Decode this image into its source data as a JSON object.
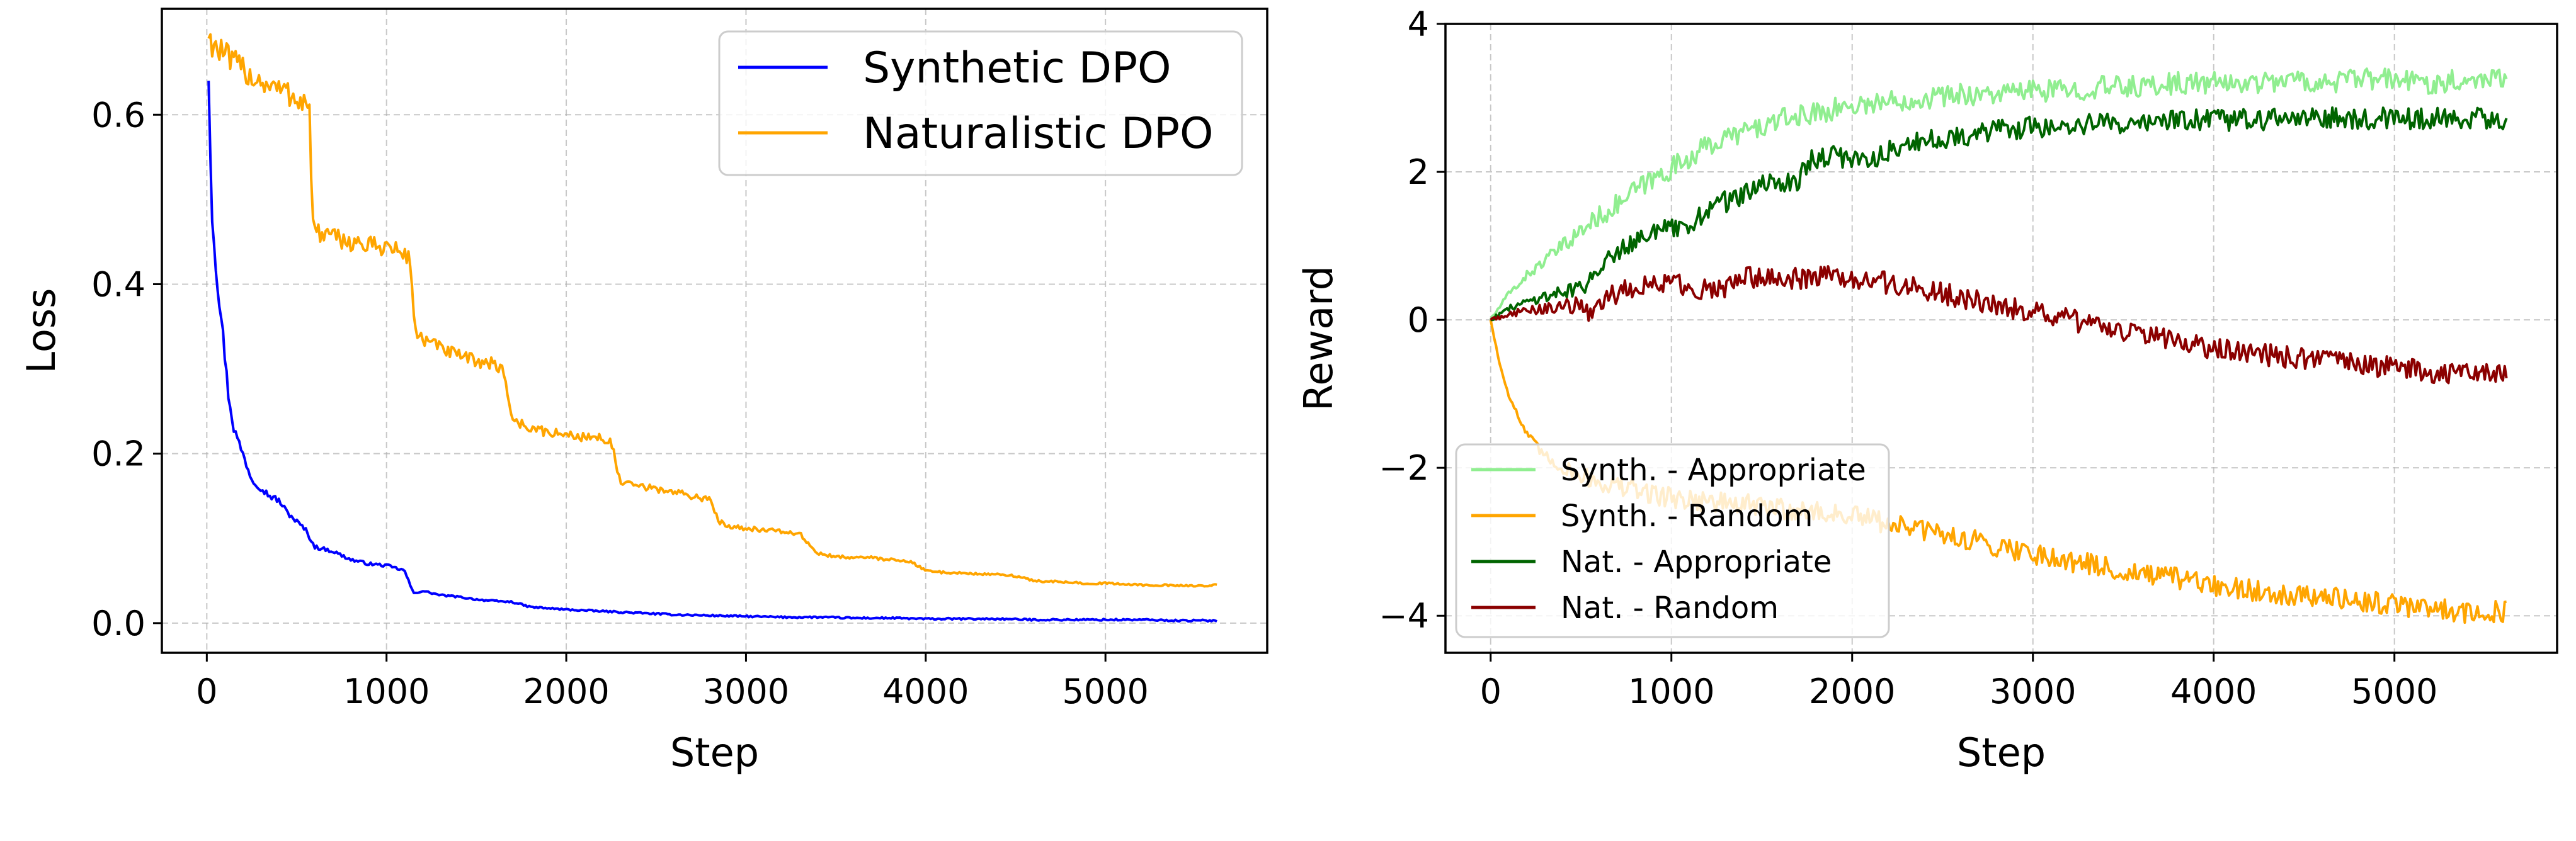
{
  "figure": {
    "panels": 2
  },
  "chart_data": [
    {
      "type": "line",
      "panel": "left",
      "title": "",
      "xlabel": "Step",
      "ylabel": "Loss",
      "xlim": [
        -250,
        5900
      ],
      "ylim": [
        -0.035,
        0.725
      ],
      "xticks": [
        0,
        1000,
        2000,
        3000,
        4000,
        5000
      ],
      "xtick_labels": [
        "0",
        "1000",
        "2000",
        "3000",
        "4000",
        "5000"
      ],
      "yticks": [
        0.0,
        0.2,
        0.4,
        0.6
      ],
      "ytick_labels": [
        "0.0",
        "0.2",
        "0.4",
        "0.6"
      ],
      "grid": true,
      "legend": {
        "placement": "top-right",
        "entries": [
          "Synthetic DPO",
          "Naturalistic DPO"
        ]
      },
      "series": [
        {
          "name": "Synthetic DPO",
          "color": "#0000FF",
          "x": [
            10,
            30,
            60,
            90,
            120,
            150,
            200,
            250,
            300,
            350,
            400,
            450,
            500,
            550,
            600,
            700,
            800,
            900,
            1000,
            1100,
            1150,
            1200,
            1300,
            1400,
            1500,
            1600,
            1700,
            1800,
            2000,
            2200,
            2400,
            2600,
            2800,
            3000,
            3200,
            3400,
            3600,
            3800,
            4000,
            4200,
            4400,
            4600,
            4800,
            5000,
            5200,
            5400,
            5620
          ],
          "y": [
            0.64,
            0.48,
            0.4,
            0.34,
            0.27,
            0.23,
            0.2,
            0.17,
            0.16,
            0.15,
            0.145,
            0.13,
            0.12,
            0.11,
            0.09,
            0.085,
            0.075,
            0.07,
            0.068,
            0.062,
            0.035,
            0.038,
            0.033,
            0.031,
            0.028,
            0.026,
            0.025,
            0.019,
            0.016,
            0.014,
            0.012,
            0.01,
            0.009,
            0.008,
            0.007,
            0.007,
            0.006,
            0.006,
            0.005,
            0.005,
            0.005,
            0.004,
            0.004,
            0.004,
            0.004,
            0.003,
            0.003
          ]
        },
        {
          "name": "Naturalistic DPO",
          "color": "#FFA500",
          "x": [
            10,
            50,
            100,
            150,
            200,
            250,
            300,
            350,
            400,
            450,
            500,
            550,
            570,
            590,
            620,
            700,
            800,
            900,
            1000,
            1050,
            1100,
            1130,
            1160,
            1200,
            1300,
            1400,
            1500,
            1600,
            1650,
            1700,
            1750,
            1800,
            1900,
            2000,
            2100,
            2200,
            2250,
            2300,
            2400,
            2500,
            2600,
            2700,
            2800,
            2850,
            2900,
            3000,
            3100,
            3200,
            3300,
            3400,
            3450,
            3500,
            3600,
            3700,
            3800,
            3900,
            4000,
            4100,
            4200,
            4300,
            4400,
            4500,
            4600,
            4700,
            4800,
            4900,
            5000,
            5100,
            5200,
            5300,
            5400,
            5500,
            5620
          ],
          "y": [
            0.69,
            0.68,
            0.67,
            0.66,
            0.655,
            0.645,
            0.64,
            0.635,
            0.63,
            0.625,
            0.62,
            0.615,
            0.61,
            0.47,
            0.46,
            0.455,
            0.45,
            0.445,
            0.445,
            0.44,
            0.435,
            0.43,
            0.345,
            0.335,
            0.325,
            0.315,
            0.31,
            0.305,
            0.3,
            0.24,
            0.235,
            0.23,
            0.225,
            0.222,
            0.22,
            0.218,
            0.215,
            0.165,
            0.162,
            0.158,
            0.155,
            0.15,
            0.145,
            0.12,
            0.115,
            0.112,
            0.11,
            0.108,
            0.105,
            0.082,
            0.08,
            0.078,
            0.078,
            0.077,
            0.075,
            0.074,
            0.062,
            0.06,
            0.059,
            0.058,
            0.057,
            0.056,
            0.05,
            0.049,
            0.048,
            0.047,
            0.047,
            0.046,
            0.045,
            0.045,
            0.044,
            0.044,
            0.045
          ]
        }
      ]
    },
    {
      "type": "line",
      "panel": "right",
      "title": "",
      "xlabel": "Step",
      "ylabel": "Reward",
      "xlim": [
        -250,
        5900
      ],
      "ylim": [
        -4.5,
        4.0
      ],
      "xticks": [
        0,
        1000,
        2000,
        3000,
        4000,
        5000
      ],
      "xtick_labels": [
        "0",
        "1000",
        "2000",
        "3000",
        "4000",
        "5000"
      ],
      "yticks": [
        -4,
        -2,
        0,
        2,
        4
      ],
      "ytick_labels": [
        "−4",
        "−2",
        "0",
        "2",
        "4"
      ],
      "grid": true,
      "legend": {
        "placement": "bottom-left",
        "entries": [
          "Synth. - Appropriate",
          "Synth. - Random",
          "Nat. - Appropriate",
          "Nat. - Random"
        ]
      },
      "series": [
        {
          "name": "Synth. - Appropriate",
          "color": "#90EE90",
          "x": [
            0,
            100,
            200,
            300,
            400,
            500,
            600,
            700,
            800,
            900,
            1000,
            1100,
            1200,
            1300,
            1400,
            1500,
            1600,
            1700,
            1800,
            1900,
            2000,
            2200,
            2400,
            2600,
            2800,
            3000,
            3200,
            3400,
            3600,
            3800,
            4000,
            4200,
            4400,
            4600,
            4800,
            5000,
            5200,
            5400,
            5620
          ],
          "y": [
            0.0,
            0.35,
            0.6,
            0.8,
            1.0,
            1.2,
            1.4,
            1.55,
            1.75,
            1.9,
            2.05,
            2.2,
            2.35,
            2.45,
            2.55,
            2.6,
            2.7,
            2.75,
            2.8,
            2.85,
            2.9,
            2.95,
            3.0,
            3.05,
            3.05,
            3.1,
            3.1,
            3.15,
            3.15,
            3.2,
            3.2,
            3.2,
            3.25,
            3.2,
            3.25,
            3.25,
            3.2,
            3.25,
            3.3
          ]
        },
        {
          "name": "Synth. - Random",
          "color": "#FFA500",
          "x": [
            0,
            50,
            100,
            150,
            200,
            250,
            300,
            400,
            500,
            600,
            700,
            800,
            900,
            1000,
            1200,
            1400,
            1600,
            1800,
            2000,
            2200,
            2400,
            2600,
            2800,
            3000,
            3200,
            3400,
            3600,
            3800,
            4000,
            4200,
            4400,
            4600,
            4800,
            5000,
            5200,
            5400,
            5620
          ],
          "y": [
            0.0,
            -0.6,
            -1.0,
            -1.3,
            -1.55,
            -1.7,
            -1.85,
            -2.0,
            -2.1,
            -2.2,
            -2.25,
            -2.3,
            -2.35,
            -2.4,
            -2.45,
            -2.5,
            -2.55,
            -2.6,
            -2.65,
            -2.75,
            -2.85,
            -2.95,
            -3.05,
            -3.15,
            -3.25,
            -3.35,
            -3.45,
            -3.5,
            -3.6,
            -3.65,
            -3.7,
            -3.75,
            -3.8,
            -3.85,
            -3.9,
            -3.95,
            -3.95
          ]
        },
        {
          "name": "Nat. - Appropriate",
          "color": "#006400",
          "x": [
            0,
            100,
            200,
            300,
            400,
            500,
            550,
            600,
            700,
            800,
            900,
            1000,
            1100,
            1150,
            1200,
            1300,
            1400,
            1500,
            1600,
            1700,
            1750,
            1800,
            1900,
            2000,
            2100,
            2200,
            2300,
            2400,
            2600,
            2800,
            3000,
            3200,
            3400,
            3600,
            3800,
            4000,
            4200,
            4400,
            4600,
            4800,
            5000,
            5200,
            5400,
            5620
          ],
          "y": [
            0.0,
            0.15,
            0.25,
            0.32,
            0.38,
            0.45,
            0.5,
            0.75,
            0.95,
            1.1,
            1.2,
            1.22,
            1.2,
            1.4,
            1.5,
            1.6,
            1.7,
            1.8,
            1.85,
            1.9,
            2.1,
            2.2,
            2.2,
            2.2,
            2.15,
            2.3,
            2.35,
            2.4,
            2.5,
            2.55,
            2.6,
            2.62,
            2.65,
            2.68,
            2.7,
            2.7,
            2.7,
            2.72,
            2.72,
            2.72,
            2.73,
            2.72,
            2.72,
            2.7
          ]
        },
        {
          "name": "Nat. - Random",
          "color": "#8B0000",
          "x": [
            0,
            100,
            200,
            300,
            400,
            500,
            550,
            600,
            700,
            800,
            900,
            1000,
            1100,
            1200,
            1300,
            1400,
            1500,
            1600,
            1700,
            1800,
            1900,
            2000,
            2100,
            2200,
            2300,
            2400,
            2600,
            2800,
            3000,
            3200,
            3400,
            3600,
            3800,
            4000,
            4200,
            4400,
            4600,
            4800,
            5000,
            5200,
            5400,
            5620
          ],
          "y": [
            0.0,
            0.08,
            0.12,
            0.15,
            0.18,
            0.2,
            0.05,
            0.25,
            0.35,
            0.45,
            0.5,
            0.5,
            0.45,
            0.4,
            0.45,
            0.55,
            0.6,
            0.58,
            0.55,
            0.6,
            0.58,
            0.55,
            0.52,
            0.5,
            0.45,
            0.42,
            0.3,
            0.2,
            0.1,
            0.0,
            -0.1,
            -0.2,
            -0.3,
            -0.4,
            -0.45,
            -0.5,
            -0.55,
            -0.6,
            -0.65,
            -0.7,
            -0.75,
            -0.7
          ]
        }
      ]
    }
  ]
}
